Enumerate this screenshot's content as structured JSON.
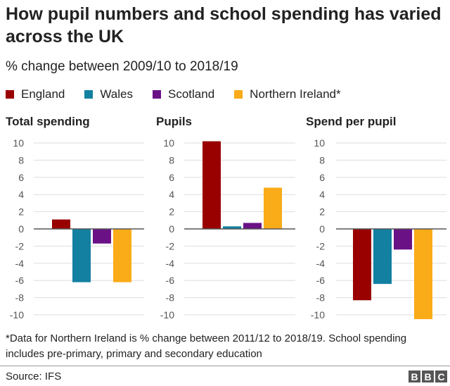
{
  "chart_data": {
    "type": "bar",
    "title": "How pupil numbers and school spending has varied across the UK",
    "subtitle": "% change between 2009/10 to 2018/19",
    "legend_placement": "top",
    "series_names": [
      "England",
      "Wales",
      "Scotland",
      "Northern Ireland*"
    ],
    "colors": [
      "#990000",
      "#1380A1",
      "#6A1186",
      "#FAAB18"
    ],
    "ylim": [
      -10,
      10
    ],
    "yticks": [
      10,
      8,
      6,
      4,
      2,
      0,
      -2,
      -4,
      -6,
      -8,
      -10
    ],
    "grid": true,
    "panels": [
      {
        "title": "Total spending",
        "values": [
          1.1,
          -6.2,
          -1.7,
          -6.2
        ]
      },
      {
        "title": "Pupils",
        "values": [
          10.2,
          0.3,
          0.7,
          4.8
        ]
      },
      {
        "title": "Spend per pupil",
        "values": [
          -8.3,
          -6.4,
          -2.4,
          -10.5
        ]
      }
    ],
    "note": "*Data for Northern Ireland is % change between 2011/12 to 2018/19. School spending includes pre-primary, primary and secondary education",
    "source": "Source: IFS"
  },
  "logo": [
    "B",
    "B",
    "C"
  ]
}
